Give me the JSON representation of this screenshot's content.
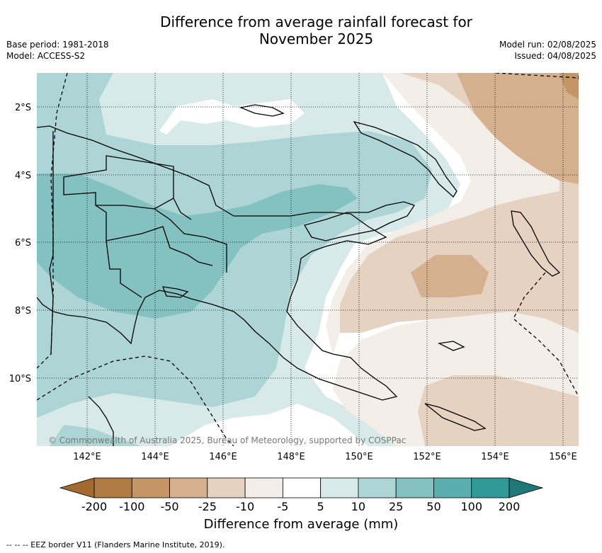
{
  "header": {
    "title_line1": "Difference from average rainfall forecast for",
    "title_line2": "November 2025",
    "base_period": "Base period: 1981-2018",
    "model": "Model: ACCESS-S2",
    "model_run": "Model run: 02/08/2025",
    "issued": "Issued: 04/08/2025"
  },
  "map": {
    "lon_ticks": [
      "142°E",
      "144°E",
      "146°E",
      "148°E",
      "150°E",
      "152°E",
      "154°E",
      "156°E"
    ],
    "lat_ticks": [
      "2°S",
      "4°S",
      "6°S",
      "8°S",
      "10°S"
    ],
    "attribution": "© Commonwealth of Australia 2025, Bureau of Meteorology, supported by COSPPac",
    "land_outline_color": "#000000",
    "gridline_style": "dotted"
  },
  "colorbar": {
    "title": "Difference from average (mm)",
    "tick_labels": [
      "-200",
      "-100",
      "-50",
      "-25",
      "-10",
      "-5",
      "5",
      "10",
      "25",
      "50",
      "100",
      "200"
    ],
    "colors": [
      "#a3692f",
      "#b07a43",
      "#c49565",
      "#d4b08f",
      "#e6d2c0",
      "#f3eee8",
      "#ffffff",
      "#d7e9e8",
      "#aed5d5",
      "#84c1c1",
      "#5baeae",
      "#319a99",
      "#1f7777"
    ]
  },
  "footnote": "--  --  -- EEZ border V11 (Flanders Marine Institute, 2019)."
}
